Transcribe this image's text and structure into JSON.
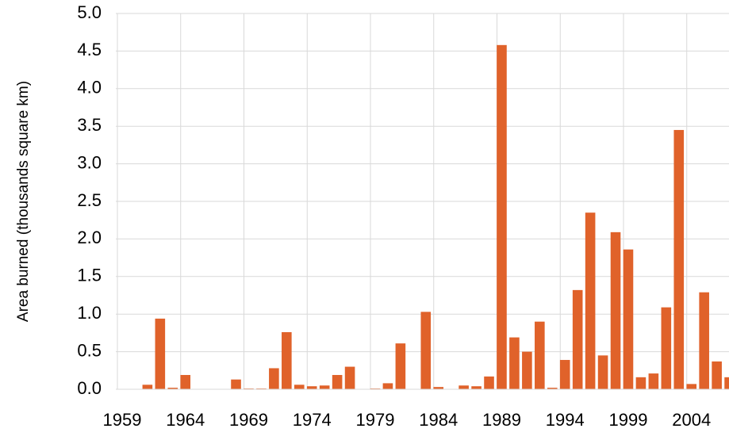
{
  "chart_data": {
    "type": "bar",
    "y_label": "Area burned (thousands square km)",
    "categories": [
      "1959",
      null,
      null,
      null,
      null,
      "1964",
      null,
      null,
      null,
      null,
      "1969",
      null,
      null,
      null,
      null,
      "1974",
      null,
      null,
      null,
      null,
      "1979",
      null,
      null,
      null,
      null,
      "1984",
      null,
      null,
      null,
      null,
      "1989",
      null,
      null,
      null,
      null,
      "1994",
      null,
      null,
      null,
      null,
      "1999",
      null,
      null,
      null,
      null,
      "2004",
      null,
      null,
      null
    ],
    "values": [
      0,
      0,
      0.06,
      0.94,
      0.02,
      0.19,
      0,
      0,
      0,
      0.13,
      0.01,
      0.01,
      0.28,
      0.76,
      0.06,
      0.04,
      0.05,
      0.19,
      0.3,
      0,
      0.01,
      0.08,
      0.61,
      0,
      1.03,
      0.03,
      0,
      0.05,
      0.04,
      0.17,
      4.58,
      0.69,
      0.5,
      0.9,
      0.02,
      0.39,
      1.32,
      2.35,
      0.45,
      2.09,
      1.86,
      0.16,
      0.21,
      1.09,
      3.45,
      0.07,
      1.29,
      0.37,
      0.16
    ],
    "color": "#e0622a",
    "ylim": [
      0,
      5
    ],
    "yticks": [
      {
        "value": 0,
        "label": "0.0"
      },
      {
        "value": 0.5,
        "label": "0.5"
      },
      {
        "value": 1,
        "label": "1.0"
      },
      {
        "value": 1.5,
        "label": "1.5"
      },
      {
        "value": 2,
        "label": "2.0"
      },
      {
        "value": 2.5,
        "label": "2.5"
      },
      {
        "value": 3,
        "label": "3.0"
      },
      {
        "value": 3.5,
        "label": "3.5"
      },
      {
        "value": 4,
        "label": "4.0"
      },
      {
        "value": 4.5,
        "label": "4.5"
      },
      {
        "value": 5,
        "label": "5.0"
      }
    ],
    "grid": true
  }
}
